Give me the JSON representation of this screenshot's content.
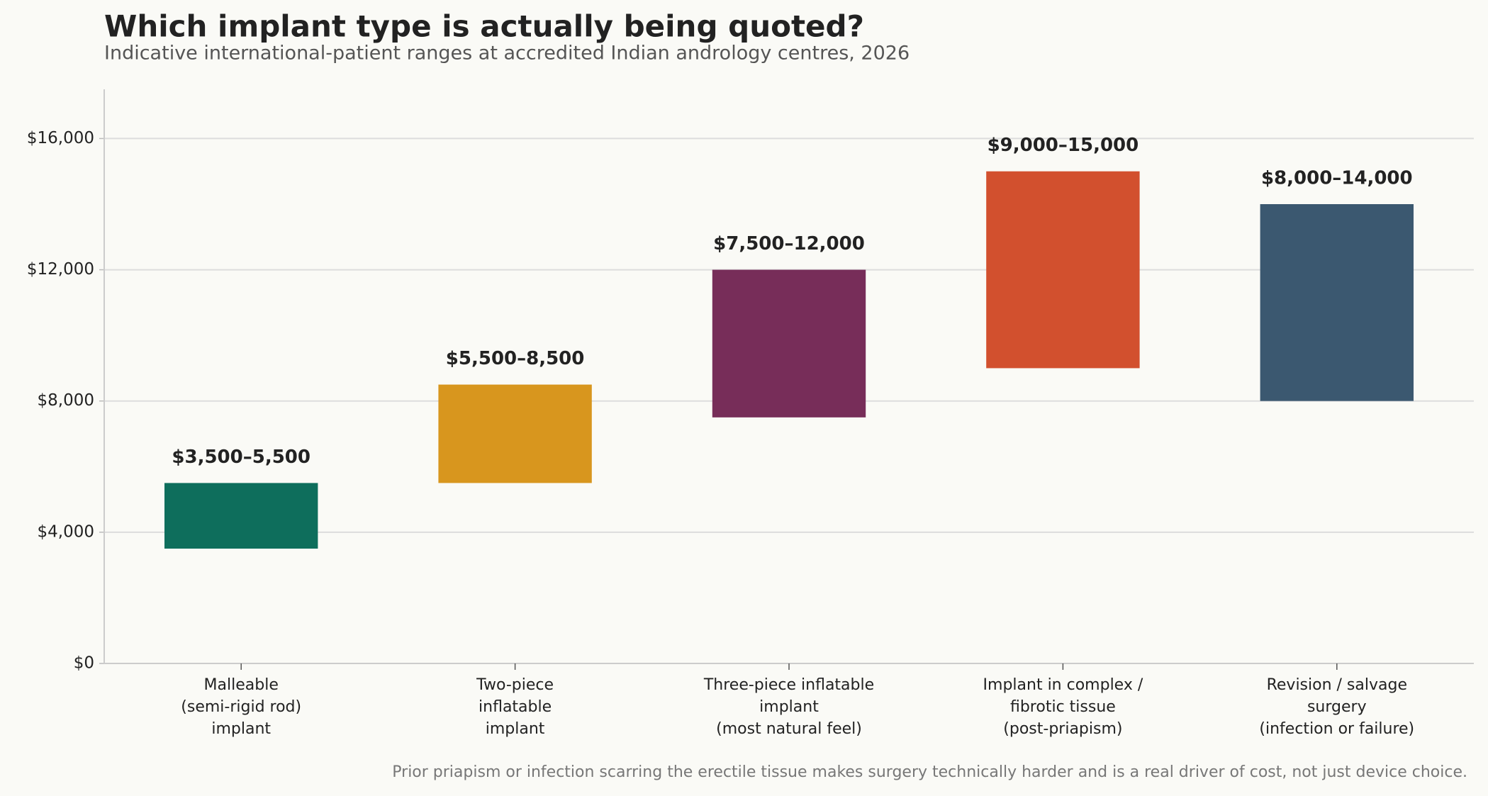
{
  "chart_data": {
    "type": "range_bar",
    "title": "Which implant type is actually being quoted?",
    "subtitle": "Indicative international-patient ranges at accredited Indian andrology centres, 2026",
    "note": "Prior priapism or infection scarring the erectile tissue makes surgery technically harder and is a real driver of cost, not just device choice.",
    "categories": [
      "Malleable\n(semi-rigid rod)\nimplant",
      "Two-piece\ninflatable\nimplant",
      "Three-piece inflatable\nimplant\n(most natural feel)",
      "Implant in complex /\nfibrotic tissue\n(post-priapism)",
      "Revision / salvage\nsurgery\n(infection or failure)"
    ],
    "low": [
      3500,
      5500,
      7500,
      9000,
      8000
    ],
    "high": [
      5500,
      8500,
      12000,
      15000,
      14000
    ],
    "value_labels": [
      "$3,500–5,500",
      "$5,500–8,500",
      "$7,500–12,000",
      "$9,000–15,000",
      "$8,000–14,000"
    ],
    "colors": [
      "#0e6e5c",
      "#d8961e",
      "#772d59",
      "#d2502e",
      "#3b5870"
    ],
    "ylim": [
      0,
      17500
    ],
    "yticks": [
      {
        "value": 0,
        "label": "$0"
      },
      {
        "value": 4000,
        "label": "$4,000"
      },
      {
        "value": 8000,
        "label": "$8,000"
      },
      {
        "value": 12000,
        "label": "$12,000"
      },
      {
        "value": 16000,
        "label": "$16,000"
      }
    ],
    "grid": true
  }
}
